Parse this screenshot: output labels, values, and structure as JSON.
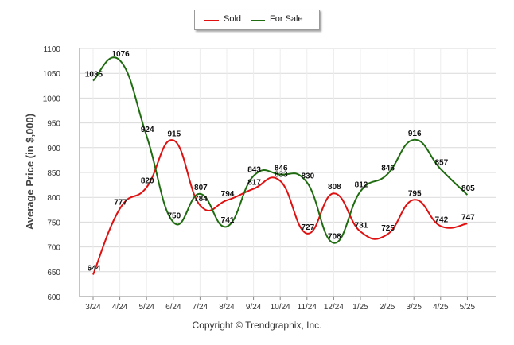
{
  "legend": {
    "items": [
      {
        "label": "Sold",
        "color": "#e01010"
      },
      {
        "label": "For Sale",
        "color": "#1f6d10"
      }
    ]
  },
  "footer": {
    "copyright": "Copyright © Trendgraphix, Inc."
  },
  "chart_data": {
    "type": "line",
    "title": "",
    "xlabel": "",
    "ylabel": "Average Price (in $,000)",
    "categories": [
      "3/24",
      "4/24",
      "5/24",
      "6/24",
      "7/24",
      "8/24",
      "9/24",
      "10/24",
      "11/24",
      "12/24",
      "1/25",
      "2/25",
      "3/25",
      "4/25",
      "5/25"
    ],
    "ylim": [
      600,
      1100
    ],
    "yticks": [
      600,
      650,
      700,
      750,
      800,
      850,
      900,
      950,
      1000,
      1050,
      1100
    ],
    "grid": true,
    "legend_position": "top-center",
    "series": [
      {
        "name": "Sold",
        "color": "#e01010",
        "values": [
          644,
          777,
          820,
          915,
          784,
          794,
          817,
          833,
          727,
          808,
          731,
          725,
          795,
          742,
          747
        ]
      },
      {
        "name": "For Sale",
        "color": "#1f6d10",
        "values": [
          1035,
          1076,
          924,
          750,
          807,
          741,
          843,
          846,
          830,
          708,
          812,
          846,
          916,
          857,
          805
        ]
      }
    ]
  }
}
